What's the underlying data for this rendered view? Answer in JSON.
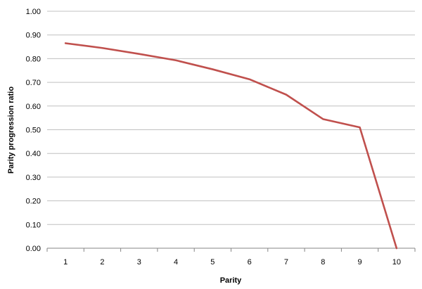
{
  "chart_data": {
    "type": "line",
    "title": "",
    "xlabel": "Parity",
    "ylabel": "Parity progression ratio",
    "categories": [
      "1",
      "2",
      "3",
      "4",
      "5",
      "6",
      "7",
      "8",
      "9",
      "10"
    ],
    "series": [
      {
        "values": [
          0.865,
          0.845,
          0.82,
          0.793,
          0.755,
          0.713,
          0.648,
          0.545,
          0.51,
          0.0
        ],
        "color": "#c0504d"
      }
    ],
    "ylim": [
      0,
      1
    ],
    "yticks": [
      "0.00",
      "0.10",
      "0.20",
      "0.30",
      "0.40",
      "0.50",
      "0.60",
      "0.70",
      "0.80",
      "0.90",
      "1.00"
    ],
    "grid": true,
    "legend": "none",
    "colors": {
      "gridline": "#c0c0c0",
      "axis": "#868686"
    }
  }
}
